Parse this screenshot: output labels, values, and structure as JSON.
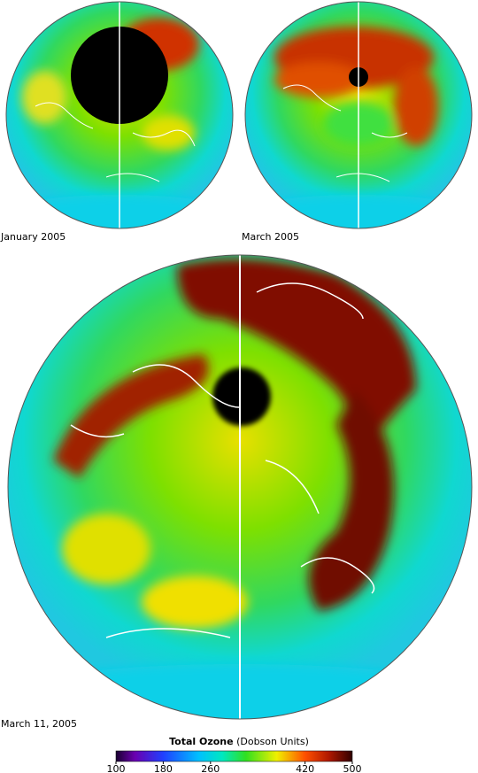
{
  "panels": [
    {
      "label": "January 2005"
    },
    {
      "label": "March 2005"
    },
    {
      "label": "March 11, 2005"
    }
  ],
  "colorbar": {
    "title": "Total Ozone",
    "units": "(Dobson Units)",
    "lim": [
      100,
      500
    ],
    "ticks": [
      100,
      180,
      260,
      420,
      500
    ]
  }
}
